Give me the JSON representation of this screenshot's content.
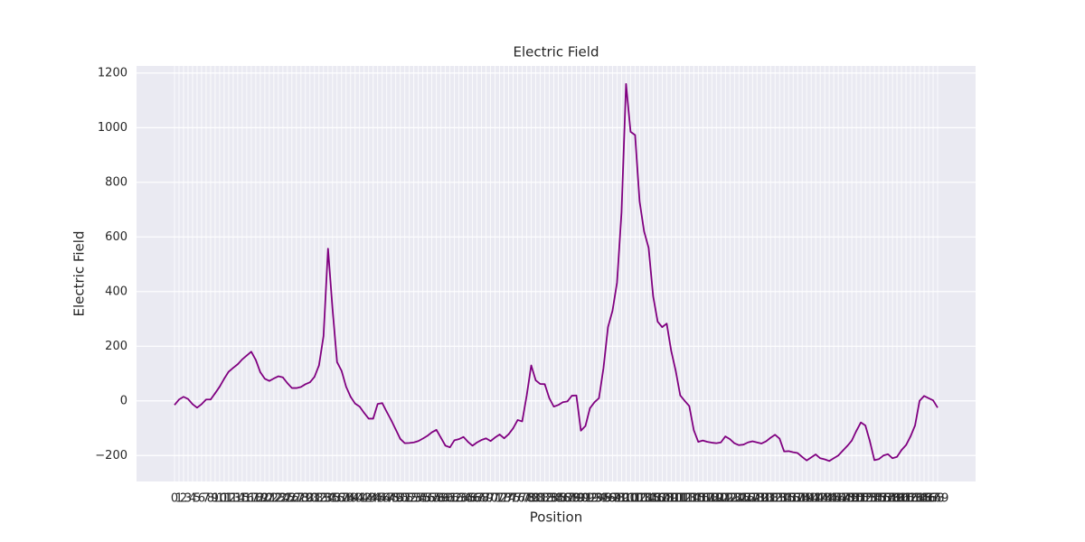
{
  "chart_data": {
    "type": "line",
    "title": "Electric Field",
    "x_label": "Position",
    "y_label": "Electric Field",
    "categories": [
      "0",
      "1",
      "2",
      "3",
      "4",
      "5",
      "6",
      "7",
      "8",
      "9",
      "10",
      "11",
      "12",
      "13",
      "14",
      "15",
      "16",
      "17",
      "18",
      "19",
      "20",
      "21",
      "22",
      "23",
      "24",
      "25",
      "26",
      "27",
      "28",
      "29",
      "30",
      "31",
      "32",
      "33",
      "34",
      "35",
      "36",
      "37",
      "38",
      "39",
      "40",
      "41",
      "42",
      "43",
      "44",
      "45",
      "46",
      "47",
      "48",
      "49",
      "50",
      "51",
      "52",
      "53",
      "54",
      "55",
      "56",
      "57",
      "58",
      "59",
      "60",
      "61",
      "62",
      "63",
      "64",
      "65",
      "66",
      "67",
      "68",
      "69",
      "70",
      "71",
      "72",
      "73",
      "74",
      "75",
      "76",
      "77",
      "78",
      "79",
      "80",
      "81",
      "82",
      "83",
      "84",
      "85",
      "86",
      "87",
      "88",
      "89",
      "90",
      "91",
      "92",
      "93",
      "94",
      "95",
      "96",
      "97",
      "98",
      "99",
      "100",
      "101",
      "102",
      "103",
      "104",
      "105",
      "106",
      "107",
      "108",
      "109",
      "110",
      "111",
      "112",
      "113",
      "114",
      "115",
      "116",
      "117",
      "118",
      "119",
      "120",
      "121",
      "122",
      "123",
      "124",
      "125",
      "126",
      "127",
      "128",
      "129",
      "130",
      "131",
      "132",
      "133",
      "134",
      "135",
      "136",
      "137",
      "138",
      "139",
      "140",
      "141",
      "142",
      "143",
      "144",
      "145",
      "146",
      "147",
      "148",
      "149",
      "150",
      "151",
      "152",
      "153",
      "154",
      "155",
      "156",
      "157",
      "158",
      "159",
      "160",
      "161",
      "162",
      "163",
      "164",
      "165",
      "166",
      "167",
      "168",
      "169"
    ],
    "values": [
      -15,
      5,
      15,
      7,
      -12,
      -25,
      -12,
      5,
      5,
      28,
      52,
      81,
      107,
      121,
      134,
      152,
      166,
      180,
      150,
      105,
      81,
      73,
      82,
      90,
      86,
      65,
      47,
      47,
      51,
      61,
      68,
      88,
      130,
      237,
      557,
      336,
      142,
      110,
      52,
      15,
      -10,
      -21,
      -44,
      -65,
      -65,
      -11,
      -8,
      -40,
      -71,
      -105,
      -139,
      -155,
      -154,
      -152,
      -147,
      -138,
      -128,
      -115,
      -106,
      -135,
      -164,
      -170,
      -144,
      -140,
      -132,
      -150,
      -164,
      -152,
      -143,
      -137,
      -147,
      -134,
      -123,
      -137,
      -122,
      -100,
      -70,
      -75,
      20,
      130,
      75,
      62,
      61,
      10,
      -21,
      -15,
      -5,
      -2,
      19,
      20,
      -109,
      -92,
      -27,
      -5,
      10,
      120,
      270,
      330,
      433,
      690,
      1160,
      985,
      973,
      730,
      620,
      560,
      383,
      290,
      270,
      283,
      183,
      110,
      20,
      0,
      -19,
      -107,
      -150,
      -145,
      -150,
      -153,
      -155,
      -152,
      -130,
      -140,
      -155,
      -162,
      -160,
      -152,
      -148,
      -152,
      -156,
      -148,
      -135,
      -124,
      -138,
      -185,
      -184,
      -188,
      -191,
      -205,
      -218,
      -207,
      -196,
      -210,
      -214,
      -220,
      -210,
      -200,
      -182,
      -165,
      -145,
      -110,
      -79,
      -90,
      -148,
      -217,
      -213,
      -200,
      -195,
      -210,
      -205,
      -180,
      -162,
      -130,
      -90,
      0,
      18,
      10,
      2,
      -25
    ],
    "color": "#800080",
    "ylim": [
      -295,
      1226
    ],
    "yticks": [
      {
        "value": -200,
        "label": "−200"
      },
      0,
      200,
      400,
      600,
      800,
      1000,
      1200
    ],
    "grid": true
  }
}
